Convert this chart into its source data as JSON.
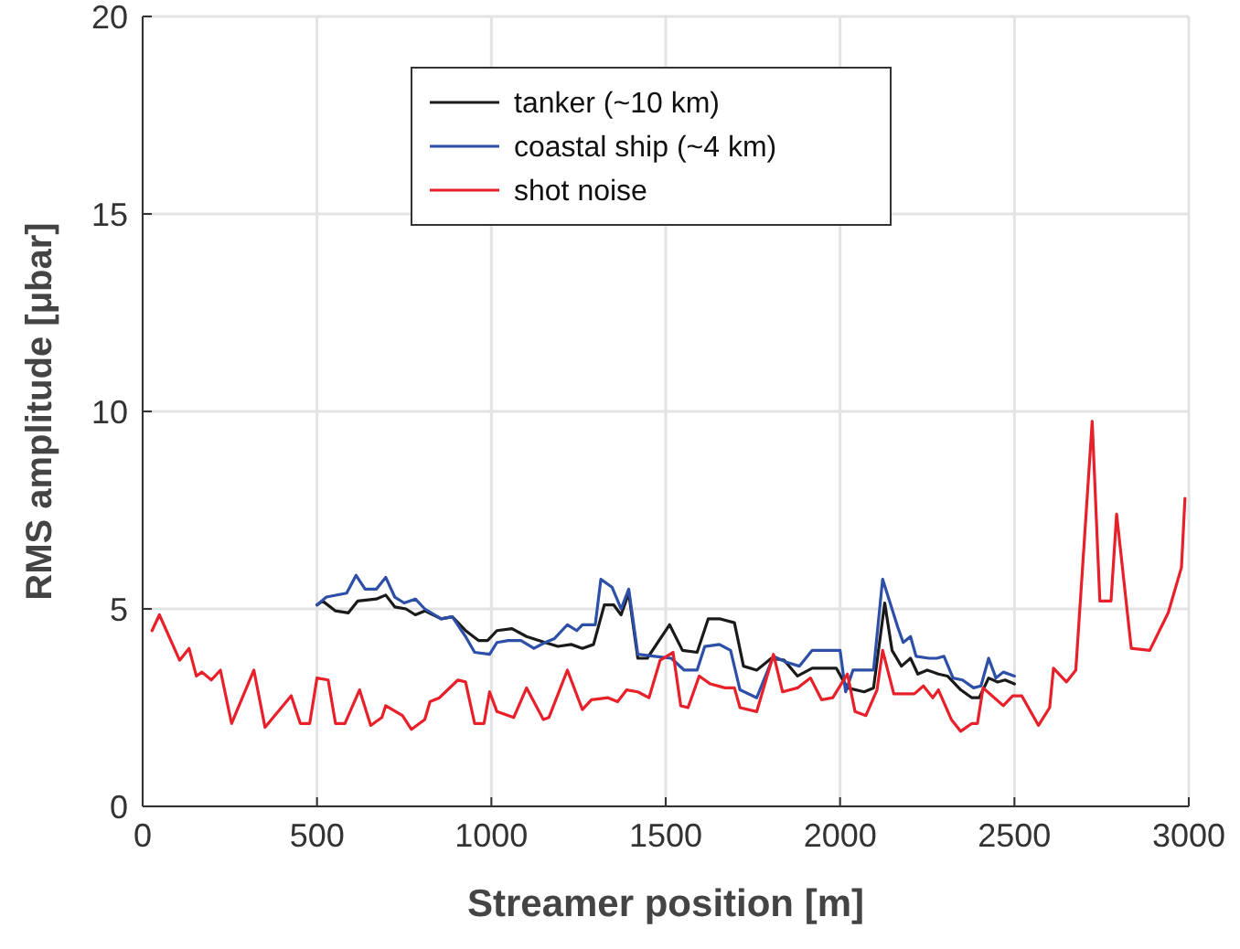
{
  "chart_data": {
    "type": "line",
    "xlabel": "Streamer position [m]",
    "ylabel": "RMS amplitude [μbar]",
    "xlim": [
      0,
      3000
    ],
    "ylim": [
      0,
      20
    ],
    "xticks": [
      0,
      500,
      1000,
      1500,
      2000,
      2500,
      3000
    ],
    "yticks": [
      0,
      5,
      10,
      15,
      20
    ],
    "grid": true,
    "legend": "top",
    "line_style": "solid",
    "marker": "none",
    "series": [
      {
        "name": "tanker (~10 km)",
        "color": "#1a1a1a",
        "x": [
          500,
          516,
          553,
          590,
          617,
          670,
          697,
          723,
          755,
          782,
          809,
          856,
          888,
          926,
          963,
          989,
          1016,
          1059,
          1101,
          1154,
          1191,
          1229,
          1261,
          1293,
          1324,
          1351,
          1372,
          1394,
          1420,
          1447,
          1511,
          1548,
          1590,
          1622,
          1654,
          1697,
          1723,
          1761,
          1803,
          1840,
          1878,
          1920,
          1989,
          2021,
          2069,
          2096,
          2128,
          2149,
          2176,
          2202,
          2223,
          2250,
          2282,
          2308,
          2346,
          2378,
          2399,
          2426,
          2452,
          2473,
          2500
        ],
        "values": [
          5.1,
          5.2,
          4.95,
          4.9,
          5.2,
          5.25,
          5.35,
          5.05,
          5.0,
          4.85,
          4.95,
          4.75,
          4.8,
          4.45,
          4.2,
          4.2,
          4.45,
          4.5,
          4.3,
          4.15,
          4.05,
          4.1,
          4.0,
          4.1,
          5.1,
          5.1,
          4.85,
          5.4,
          3.75,
          3.75,
          4.6,
          3.95,
          3.9,
          4.75,
          4.75,
          4.65,
          3.55,
          3.45,
          3.75,
          3.7,
          3.3,
          3.5,
          3.5,
          3.0,
          2.9,
          3.0,
          5.15,
          3.95,
          3.55,
          3.75,
          3.35,
          3.45,
          3.35,
          3.3,
          2.95,
          2.75,
          2.75,
          3.25,
          3.15,
          3.2,
          3.1
        ]
      },
      {
        "name": "coastal ship (~4 km)",
        "color": "#2e4fa8",
        "x": [
          500,
          527,
          585,
          612,
          638,
          670,
          697,
          723,
          750,
          782,
          809,
          856,
          888,
          926,
          952,
          995,
          1016,
          1048,
          1085,
          1122,
          1154,
          1181,
          1218,
          1245,
          1261,
          1298,
          1314,
          1346,
          1372,
          1394,
          1420,
          1468,
          1516,
          1553,
          1590,
          1612,
          1654,
          1686,
          1713,
          1761,
          1809,
          1846,
          1883,
          1920,
          2000,
          2016,
          2037,
          2096,
          2122,
          2165,
          2181,
          2202,
          2218,
          2255,
          2277,
          2298,
          2324,
          2351,
          2383,
          2404,
          2426,
          2447,
          2468,
          2500
        ],
        "values": [
          5.1,
          5.3,
          5.4,
          5.85,
          5.5,
          5.5,
          5.8,
          5.3,
          5.15,
          5.25,
          5.0,
          4.75,
          4.8,
          4.3,
          3.9,
          3.85,
          4.15,
          4.2,
          4.2,
          4.0,
          4.15,
          4.25,
          4.6,
          4.45,
          4.6,
          4.6,
          5.75,
          5.55,
          5.0,
          5.5,
          3.85,
          3.8,
          3.75,
          3.45,
          3.45,
          4.05,
          4.1,
          3.95,
          2.95,
          2.75,
          3.8,
          3.65,
          3.55,
          3.95,
          3.95,
          2.9,
          3.45,
          3.45,
          5.75,
          4.55,
          4.15,
          4.3,
          3.8,
          3.75,
          3.75,
          3.8,
          3.25,
          3.2,
          3.0,
          3.05,
          3.75,
          3.25,
          3.4,
          3.3
        ]
      },
      {
        "name": "shot noise",
        "color": "#e8202a",
        "x": [
          27,
          48,
          106,
          133,
          154,
          170,
          197,
          223,
          255,
          319,
          351,
          426,
          452,
          479,
          500,
          532,
          553,
          580,
          622,
          654,
          686,
          697,
          745,
          771,
          809,
          824,
          851,
          904,
          926,
          952,
          979,
          995,
          1016,
          1064,
          1101,
          1149,
          1165,
          1218,
          1261,
          1287,
          1335,
          1362,
          1388,
          1420,
          1452,
          1484,
          1521,
          1543,
          1564,
          1596,
          1628,
          1670,
          1697,
          1713,
          1761,
          1809,
          1835,
          1878,
          1915,
          1947,
          1979,
          2021,
          2043,
          2074,
          2106,
          2122,
          2154,
          2213,
          2239,
          2266,
          2282,
          2319,
          2346,
          2378,
          2394,
          2410,
          2468,
          2495,
          2521,
          2569,
          2601,
          2612,
          2649,
          2676,
          2723,
          2745,
          2777,
          2793,
          2835,
          2888,
          2941,
          2979,
          2989
        ],
        "values": [
          4.45,
          4.85,
          3.7,
          4.0,
          3.3,
          3.4,
          3.2,
          3.45,
          2.1,
          3.45,
          2.0,
          2.8,
          2.1,
          2.1,
          3.25,
          3.2,
          2.1,
          2.1,
          2.95,
          2.05,
          2.25,
          2.55,
          2.3,
          1.95,
          2.2,
          2.65,
          2.75,
          3.2,
          3.15,
          2.1,
          2.1,
          2.9,
          2.4,
          2.25,
          3.0,
          2.2,
          2.25,
          3.45,
          2.45,
          2.7,
          2.75,
          2.65,
          2.95,
          2.9,
          2.75,
          3.7,
          3.9,
          2.55,
          2.5,
          3.3,
          3.1,
          3.0,
          3.0,
          2.5,
          2.4,
          3.85,
          2.9,
          3.0,
          3.25,
          2.7,
          2.75,
          3.35,
          2.4,
          2.3,
          2.95,
          3.95,
          2.85,
          2.85,
          3.05,
          2.75,
          2.95,
          2.2,
          1.9,
          2.1,
          2.1,
          3.0,
          2.55,
          2.8,
          2.8,
          2.05,
          2.5,
          3.5,
          3.15,
          3.45,
          9.75,
          5.2,
          5.2,
          7.4,
          4.0,
          3.95,
          4.9,
          6.05,
          7.8
        ]
      }
    ]
  }
}
